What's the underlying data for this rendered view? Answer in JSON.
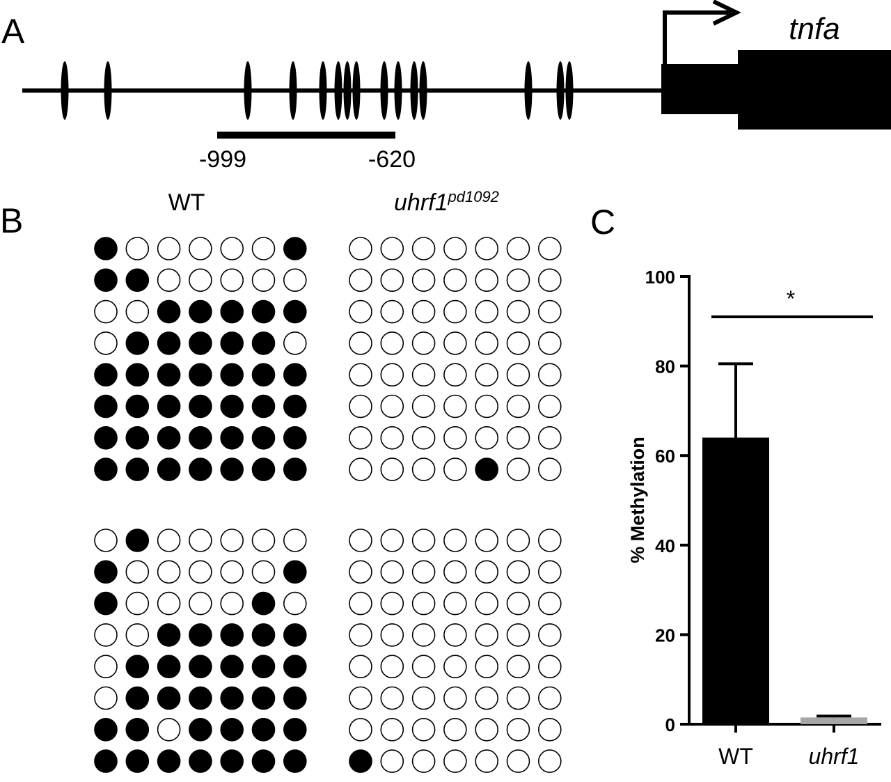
{
  "panel_a": {
    "letter": "A",
    "gene_name": "tnfa",
    "region_start": "-999",
    "region_end": "-620"
  },
  "panel_b": {
    "letter": "B",
    "wt_label": "WT",
    "mutant_label_main": "uhrf1",
    "mutant_label_sup": "pd1092",
    "grids": [
      {
        "genotype": "WT",
        "replicate": 1,
        "rows": [
          [
            1,
            0,
            0,
            0,
            0,
            0,
            1
          ],
          [
            1,
            1,
            0,
            0,
            0,
            0,
            0
          ],
          [
            0,
            0,
            1,
            1,
            1,
            1,
            1
          ],
          [
            0,
            1,
            1,
            1,
            1,
            1,
            0
          ],
          [
            1,
            1,
            1,
            1,
            1,
            1,
            1
          ],
          [
            1,
            1,
            1,
            1,
            1,
            1,
            1
          ],
          [
            1,
            1,
            1,
            1,
            1,
            1,
            1
          ],
          [
            1,
            1,
            1,
            1,
            1,
            1,
            1
          ]
        ]
      },
      {
        "genotype": "uhrf1",
        "replicate": 1,
        "rows": [
          [
            0,
            0,
            0,
            0,
            0,
            0,
            0
          ],
          [
            0,
            0,
            0,
            0,
            0,
            0,
            0
          ],
          [
            0,
            0,
            0,
            0,
            0,
            0,
            0
          ],
          [
            0,
            0,
            0,
            0,
            0,
            0,
            0
          ],
          [
            0,
            0,
            0,
            0,
            0,
            0,
            0
          ],
          [
            0,
            0,
            0,
            0,
            0,
            0,
            0
          ],
          [
            0,
            0,
            0,
            0,
            0,
            0,
            0
          ],
          [
            0,
            0,
            0,
            0,
            1,
            0,
            0
          ]
        ]
      },
      {
        "genotype": "WT",
        "replicate": 2,
        "rows": [
          [
            0,
            1,
            0,
            0,
            0,
            0,
            0
          ],
          [
            1,
            0,
            0,
            0,
            0,
            0,
            1
          ],
          [
            1,
            0,
            0,
            0,
            0,
            1,
            0
          ],
          [
            0,
            0,
            1,
            1,
            1,
            1,
            1
          ],
          [
            0,
            1,
            1,
            1,
            1,
            1,
            1
          ],
          [
            0,
            1,
            1,
            1,
            1,
            1,
            1
          ],
          [
            1,
            1,
            0,
            1,
            1,
            1,
            1
          ],
          [
            1,
            1,
            1,
            1,
            1,
            1,
            1
          ]
        ]
      },
      {
        "genotype": "uhrf1",
        "replicate": 2,
        "rows": [
          [
            0,
            0,
            0,
            0,
            0,
            0,
            0
          ],
          [
            0,
            0,
            0,
            0,
            0,
            0,
            0
          ],
          [
            0,
            0,
            0,
            0,
            0,
            0,
            0
          ],
          [
            0,
            0,
            0,
            0,
            0,
            0,
            0
          ],
          [
            0,
            0,
            0,
            0,
            0,
            0,
            0
          ],
          [
            0,
            0,
            0,
            0,
            0,
            0,
            0
          ],
          [
            0,
            0,
            0,
            0,
            0,
            0,
            0
          ],
          [
            1,
            0,
            0,
            0,
            0,
            0,
            0
          ]
        ]
      }
    ]
  },
  "panel_c": {
    "letter": "C",
    "significance": "*"
  },
  "chart_data": {
    "type": "bar",
    "title": "",
    "xlabel": "",
    "ylabel": "% Methylation",
    "categories": [
      "WT",
      "uhrf1"
    ],
    "values": [
      64,
      1.5
    ],
    "error_upper": [
      80.5,
      1.8
    ],
    "ylim": [
      0,
      100
    ],
    "yticks": [
      0,
      20,
      40,
      60,
      80,
      100
    ],
    "bar_colors": [
      "#000000",
      "#a6a6a6"
    ],
    "significance_label": "*",
    "grid": false,
    "legend": "none"
  }
}
